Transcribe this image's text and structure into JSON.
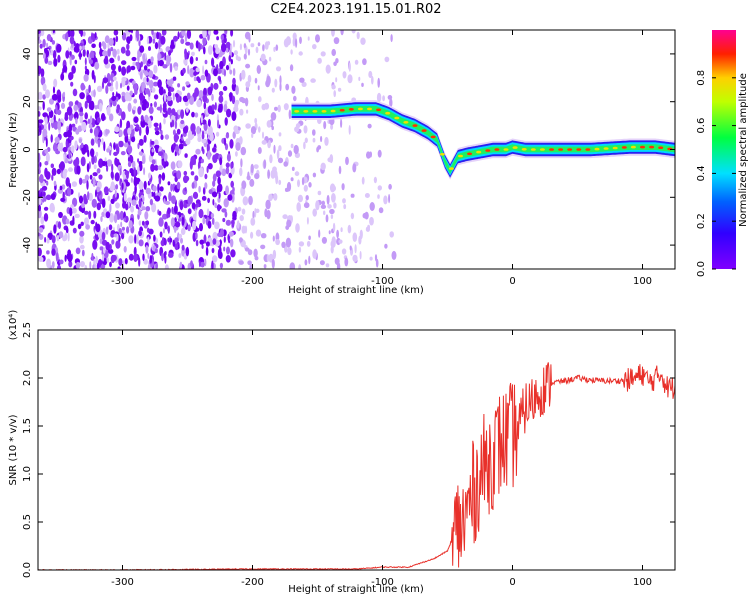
{
  "title": "C2E4.2023.191.15.01.R02",
  "chart_data": [
    {
      "type": "heatmap",
      "xlabel": "Height of straight line (km)",
      "ylabel": "Frequency (Hz)",
      "xlim": [
        -365,
        125
      ],
      "ylim": [
        -50,
        50
      ],
      "xticks": [
        -300,
        -200,
        -100,
        0,
        100
      ],
      "yticks": [
        -40,
        -20,
        0,
        20,
        40
      ],
      "colorbar": {
        "label": "Normalized spectral amplitude",
        "range": [
          0.0,
          1.0
        ],
        "ticks": [
          0.0,
          0.2,
          0.4,
          0.6,
          0.8
        ],
        "colormap": "rainbow (purple → blue → cyan → green → yellow → red → magenta)"
      },
      "signal_ridge": {
        "x": [
          -170,
          -160,
          -140,
          -120,
          -105,
          -95,
          -85,
          -75,
          -65,
          -58,
          -52,
          -48,
          -42,
          -35,
          -25,
          -15,
          -5,
          0,
          10,
          30,
          60,
          90,
          110,
          125
        ],
        "y": [
          16,
          16,
          16,
          17,
          17,
          15,
          12,
          10,
          7,
          4,
          -5,
          -9,
          -3,
          -2,
          -1,
          0,
          0,
          1,
          0,
          0,
          0,
          1,
          1,
          0
        ]
      },
      "noise_region_x": [
        -365,
        -90
      ]
    },
    {
      "type": "line",
      "xlabel": "Height of straight line (km)",
      "ylabel": "SNR (10 * v/v)",
      "y_multiplier": "(x10⁴)",
      "xlim": [
        -365,
        125
      ],
      "ylim": [
        0,
        2.5
      ],
      "xticks": [
        -300,
        -200,
        -100,
        0,
        100
      ],
      "yticks": [
        0.0,
        0.5,
        1.0,
        1.5,
        2.0,
        2.5
      ],
      "series": [
        {
          "color": "#e8302a",
          "x": [
            -365,
            -300,
            -200,
            -120,
            -100,
            -80,
            -60,
            -50,
            -45,
            -40,
            -38,
            -35,
            -30,
            -25,
            -20,
            -15,
            -10,
            -5,
            0,
            5,
            10,
            15,
            20,
            25,
            30,
            40,
            50,
            60,
            70,
            80,
            90,
            95,
            100,
            105,
            110,
            115,
            118,
            120,
            125
          ],
          "y": [
            0.0,
            0.0,
            0.01,
            0.01,
            0.03,
            0.03,
            0.12,
            0.2,
            0.35,
            0.5,
            0.45,
            0.6,
            0.8,
            1.0,
            1.1,
            1.2,
            1.3,
            1.35,
            1.4,
            1.5,
            1.7,
            1.75,
            1.85,
            1.9,
            1.95,
            1.97,
            2.0,
            1.98,
            1.97,
            1.97,
            1.98,
            2.0,
            2.05,
            1.95,
            2.0,
            2.05,
            1.92,
            1.9,
            1.9
          ]
        }
      ]
    }
  ]
}
